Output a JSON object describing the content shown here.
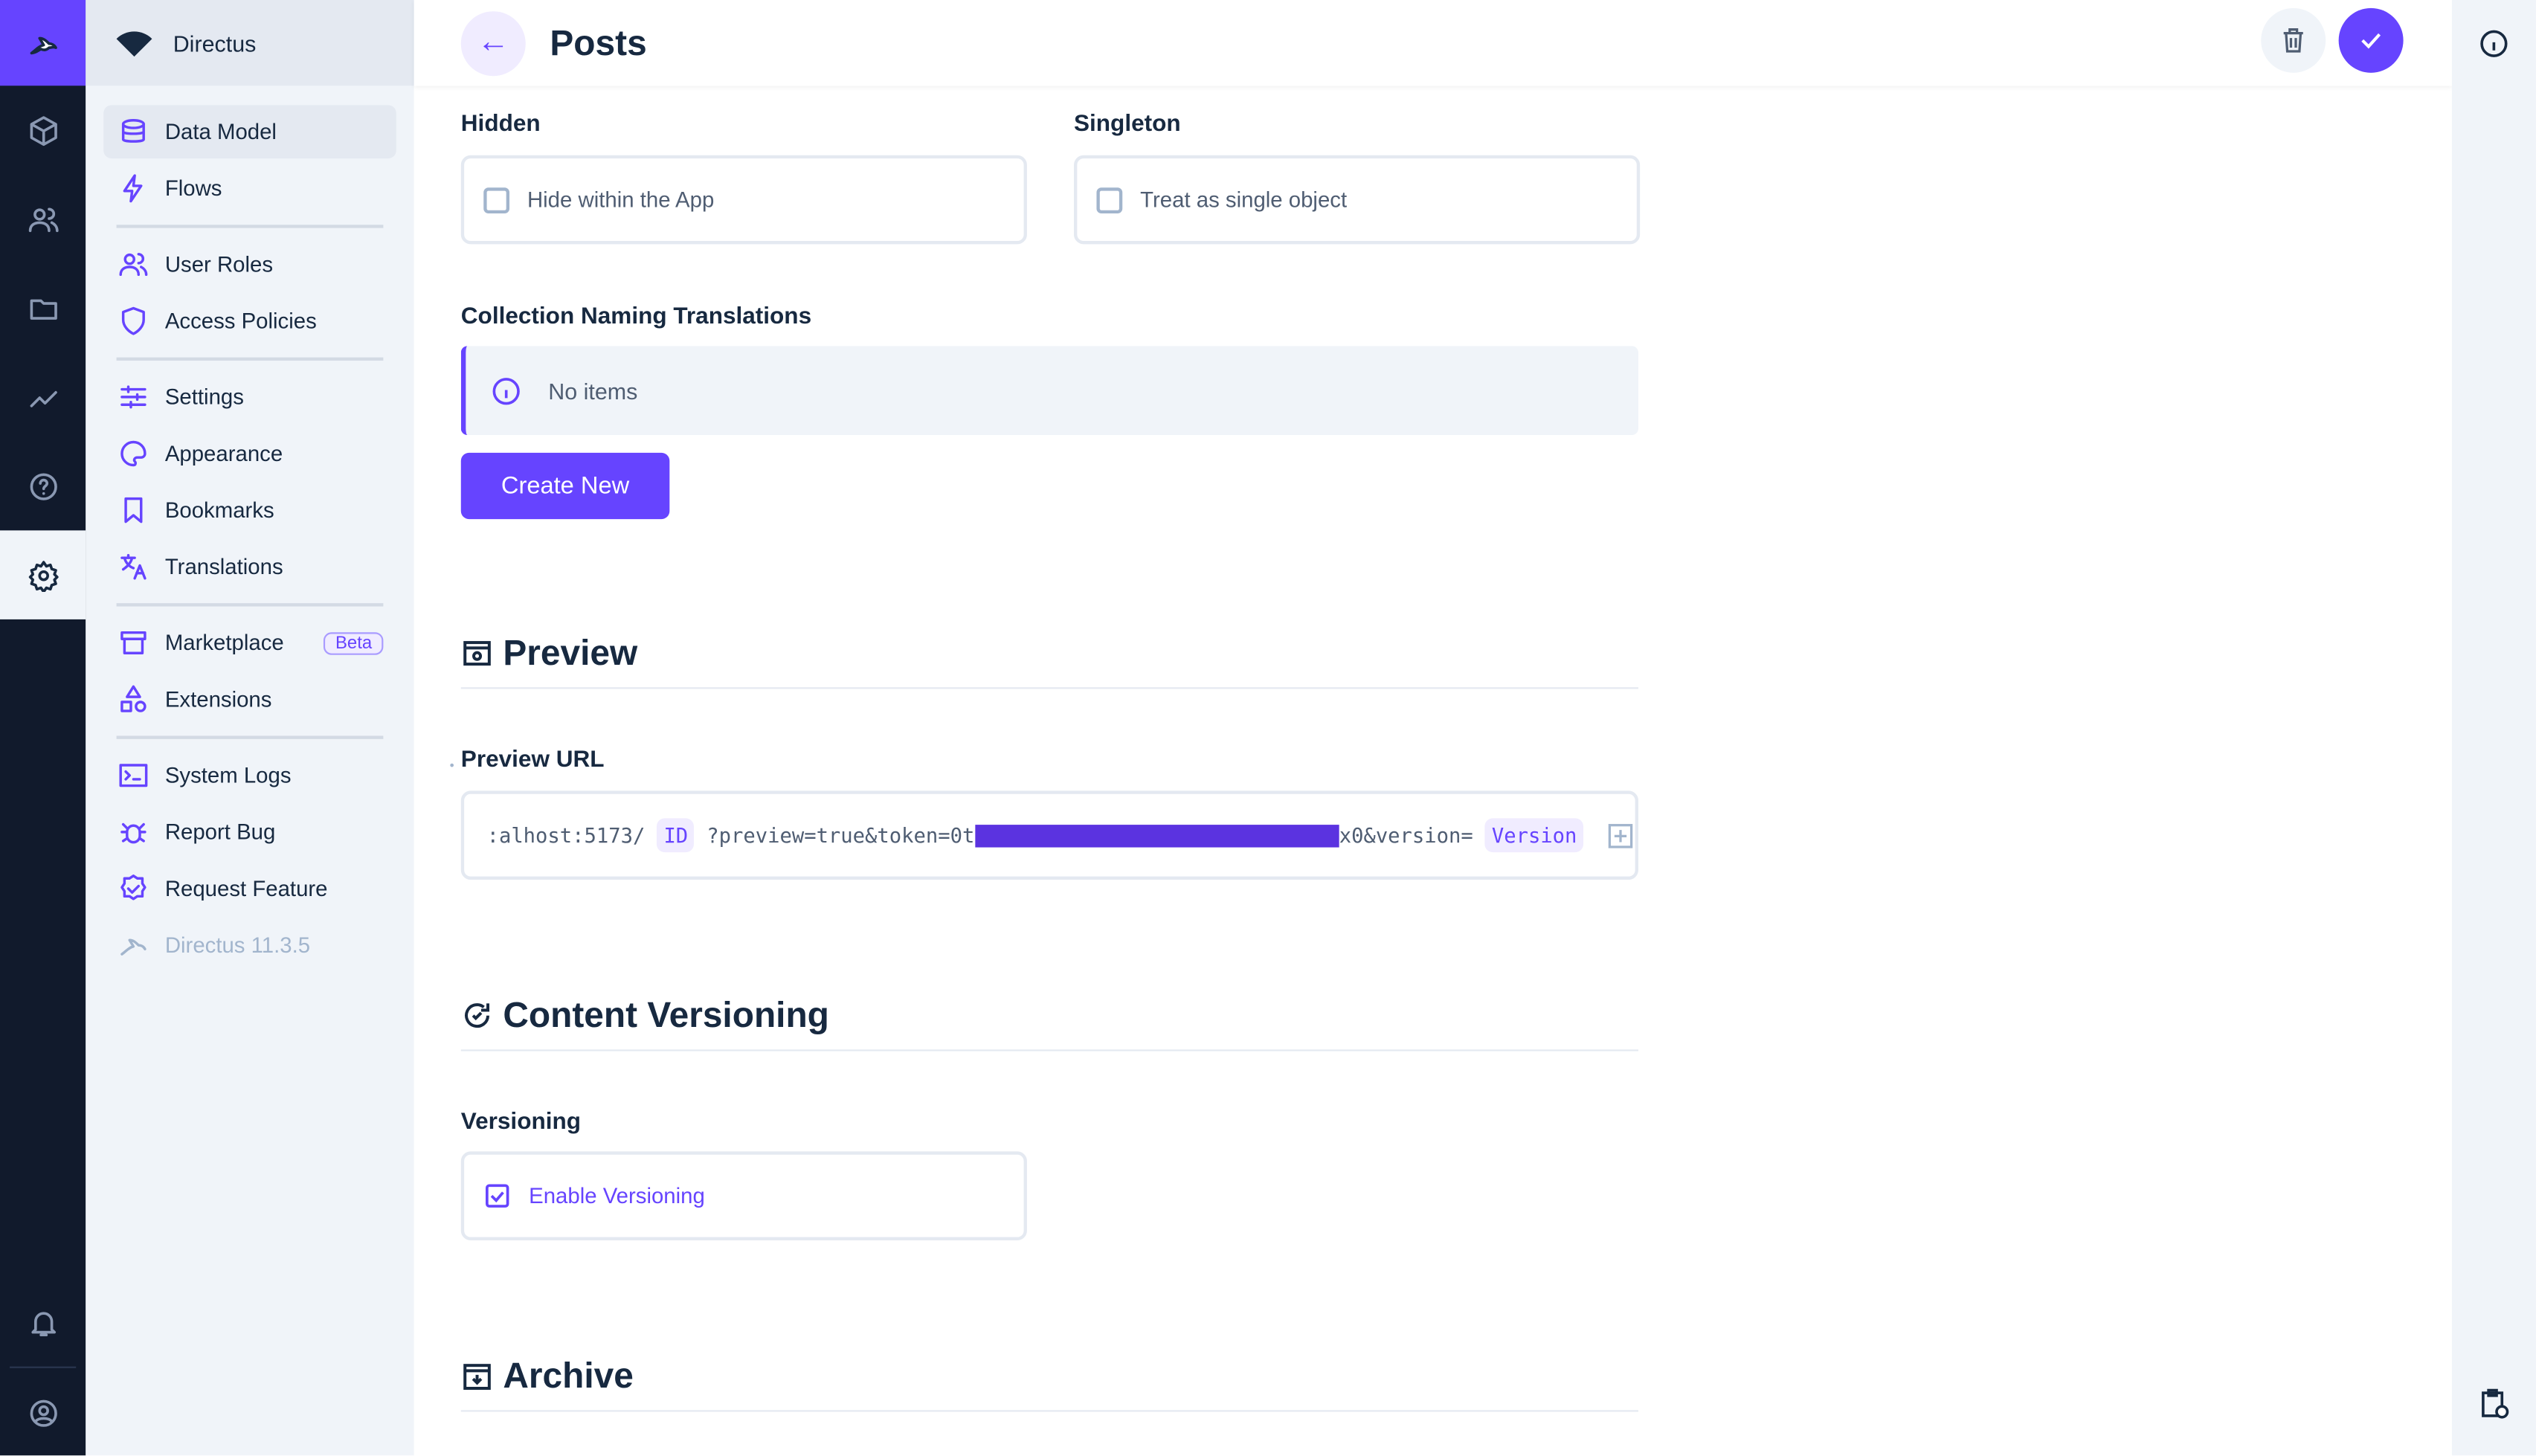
{
  "colors": {
    "accent": "#6644ff",
    "rail": "#111a2c",
    "nav_bg": "#f0f4f9"
  },
  "rail": {
    "icons": [
      "directus-logo-icon",
      "content-cube-icon",
      "users-icon",
      "folder-icon",
      "insights-icon",
      "help-icon",
      "settings-gear-icon",
      "bell-icon",
      "user-avatar-icon"
    ]
  },
  "nav": {
    "project": "Directus",
    "items": [
      {
        "label": "Data Model",
        "icon": "database-icon"
      },
      {
        "label": "Flows",
        "icon": "bolt-icon"
      },
      {
        "label": "User Roles",
        "icon": "users-icon"
      },
      {
        "label": "Access Policies",
        "icon": "shield-icon"
      },
      {
        "label": "Settings",
        "icon": "sliders-icon"
      },
      {
        "label": "Appearance",
        "icon": "palette-icon"
      },
      {
        "label": "Bookmarks",
        "icon": "bookmark-icon"
      },
      {
        "label": "Translations",
        "icon": "translate-icon"
      },
      {
        "label": "Marketplace",
        "icon": "store-icon",
        "badge": "Beta"
      },
      {
        "label": "Extensions",
        "icon": "shapes-icon"
      },
      {
        "label": "System Logs",
        "icon": "terminal-icon"
      },
      {
        "label": "Report Bug",
        "icon": "bug-icon"
      },
      {
        "label": "Request Feature",
        "icon": "verified-icon"
      }
    ],
    "version": "Directus 11.3.5"
  },
  "header": {
    "title": "Posts"
  },
  "form": {
    "hidden_label": "Hidden",
    "hidden_option": "Hide within the App",
    "hidden_checked": false,
    "singleton_label": "Singleton",
    "singleton_option": "Treat as single object",
    "singleton_checked": false,
    "translations_label": "Collection Naming Translations",
    "no_items": "No items",
    "create_new": "Create New",
    "preview_title": "Preview",
    "preview_url_label": "Preview URL",
    "preview_url": {
      "part1": ":alhost:5173/",
      "id_chip": "ID",
      "part2": "?preview=true&token=0t",
      "part3": "x0&version=",
      "version_chip": "Version"
    },
    "versioning_title": "Content Versioning",
    "versioning_label": "Versioning",
    "versioning_option": "Enable Versioning",
    "versioning_checked": true,
    "archive_title": "Archive"
  }
}
